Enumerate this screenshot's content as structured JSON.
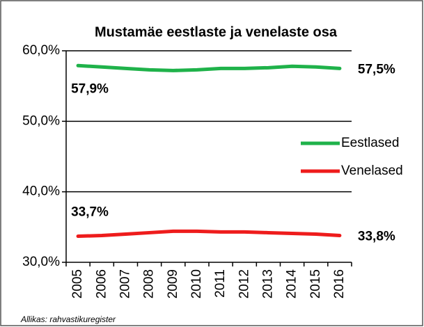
{
  "chart_data": {
    "type": "line",
    "title": "Mustamäe eestlaste ja venelaste osa",
    "categories": [
      "2005",
      "2006",
      "2007",
      "2008",
      "2009",
      "2010",
      "2011",
      "2012",
      "2013",
      "2014",
      "2015",
      "2016"
    ],
    "series": [
      {
        "name": "Eestlased",
        "color": "#1fb24a",
        "values": [
          57.9,
          57.7,
          57.5,
          57.3,
          57.2,
          57.3,
          57.5,
          57.5,
          57.6,
          57.8,
          57.7,
          57.5
        ],
        "value_labels": [
          "57,9%",
          null,
          null,
          null,
          null,
          null,
          null,
          null,
          null,
          null,
          null,
          "57,5%"
        ]
      },
      {
        "name": "Venelased",
        "color": "#ee1c1c",
        "values": [
          33.7,
          33.8,
          34.0,
          34.2,
          34.4,
          34.4,
          34.3,
          34.3,
          34.2,
          34.1,
          34.0,
          33.8
        ],
        "value_labels": [
          "33,7%",
          null,
          null,
          null,
          null,
          null,
          null,
          null,
          null,
          null,
          null,
          "33,8%"
        ]
      }
    ],
    "ylim": [
      30,
      60
    ],
    "yticks": [
      {
        "value": 30,
        "label": "30,0%"
      },
      {
        "value": 40,
        "label": "40,0%"
      },
      {
        "value": 50,
        "label": "50,0%"
      },
      {
        "value": 60,
        "label": "60,0%"
      }
    ],
    "grid": true,
    "legend": "right",
    "source": "Allikas: rahvastikuregister"
  }
}
